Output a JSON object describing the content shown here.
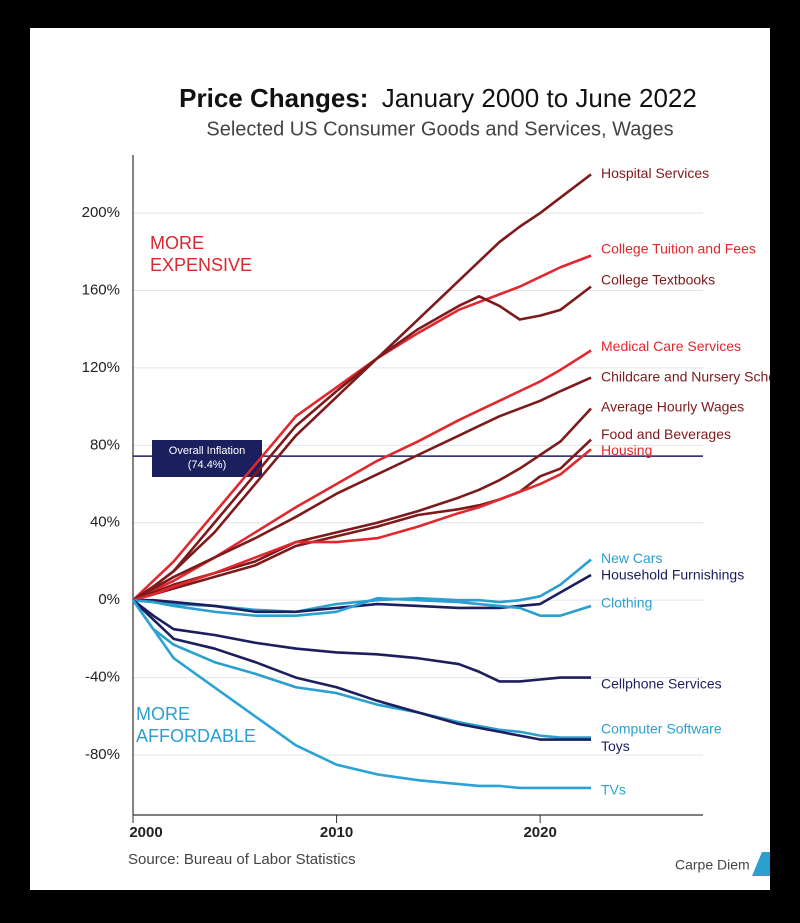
{
  "chart_data": {
    "type": "line",
    "title": [
      "Price Changes:",
      "January 2000 to June 2022"
    ],
    "subtitle": "Selected US Consumer Goods and Services, Wages",
    "source": "Source: Bureau of Labor Statistics",
    "credit": "Carpe Diem",
    "annotations": [
      {
        "lines": [
          "MORE",
          "EXPENSIVE"
        ],
        "color": "#d9272e"
      },
      {
        "lines": [
          "MORE",
          "AFFORDABLE"
        ],
        "color": "#2a9fd0"
      }
    ],
    "inflation": {
      "value": 74.4,
      "label": "Overall Inflation",
      "value_label": "(74.4%)",
      "color": "#1b1f5e"
    },
    "x": [
      2000,
      2001,
      2002,
      2004,
      2006,
      2008,
      2010,
      2012,
      2014,
      2016,
      2017,
      2018,
      2019,
      2020,
      2021,
      2022.5
    ],
    "xlim": [
      2000,
      2028
    ],
    "xticks": [
      2000,
      2010,
      2020
    ],
    "ylim": [
      -111,
      230
    ],
    "yticks": [
      {
        "value": -80,
        "label": "-80%"
      },
      {
        "value": -40,
        "label": "-40%"
      },
      {
        "value": 0,
        "label": "0%"
      },
      {
        "value": 40,
        "label": "40%"
      },
      {
        "value": 80,
        "label": "80%"
      },
      {
        "value": 120,
        "label": "120%"
      },
      {
        "value": 160,
        "label": "160%"
      },
      {
        "value": 200,
        "label": "200%"
      }
    ],
    "grid": true,
    "series": [
      {
        "name": "Hospital Services",
        "color": "#7d1a1c",
        "values": [
          0,
          7,
          15,
          35,
          60,
          85,
          105,
          125,
          145,
          165,
          175,
          185,
          193,
          200,
          208,
          220
        ]
      },
      {
        "name": "College Tuition and Fees",
        "color": "#e0282e",
        "values": [
          0,
          10,
          20,
          45,
          70,
          95,
          110,
          125,
          138,
          150,
          154,
          158,
          162,
          167,
          172,
          178
        ]
      },
      {
        "name": "College Textbooks",
        "color": "#7d1a1c",
        "values": [
          0,
          7,
          15,
          40,
          65,
          90,
          108,
          125,
          140,
          152,
          157,
          152,
          145,
          147,
          150,
          162
        ]
      },
      {
        "name": "Medical Care Services",
        "color": "#e0282e",
        "values": [
          0,
          5,
          10,
          22,
          35,
          48,
          60,
          72,
          82,
          93,
          98,
          103,
          108,
          113,
          119,
          129
        ]
      },
      {
        "name": "Childcare and Nursery School",
        "color": "#7d1a1c",
        "values": [
          0,
          6,
          12,
          22,
          32,
          43,
          55,
          65,
          75,
          85,
          90,
          95,
          99,
          103,
          108,
          115
        ]
      },
      {
        "name": "Average Hourly Wages",
        "color": "#7d1a1c",
        "values": [
          0,
          4,
          8,
          14,
          20,
          30,
          35,
          40,
          46,
          53,
          57,
          62,
          68,
          75,
          82,
          99
        ]
      },
      {
        "name": "Food and Beverages",
        "color": "#7d1a1c",
        "values": [
          0,
          3,
          6,
          12,
          18,
          28,
          33,
          38,
          44,
          47,
          49,
          52,
          56,
          64,
          68,
          83
        ]
      },
      {
        "name": "Housing",
        "color": "#e0282e",
        "values": [
          0,
          3,
          7,
          14,
          22,
          30,
          30,
          32,
          38,
          45,
          48,
          52,
          56,
          60,
          65,
          78
        ]
      },
      {
        "name": "New Cars",
        "color": "#2a9fd0",
        "values": [
          0,
          -1,
          -2,
          -3,
          -5,
          -6,
          -2,
          0,
          1,
          0,
          0,
          -1,
          0,
          2,
          8,
          21
        ]
      },
      {
        "name": "Household Furnishings",
        "color": "#1b1f5e",
        "values": [
          0,
          0,
          -1,
          -3,
          -6,
          -6,
          -4,
          -2,
          -3,
          -4,
          -4,
          -4,
          -3,
          -2,
          4,
          13
        ]
      },
      {
        "name": "Clothing",
        "color": "#2a9fd0",
        "values": [
          0,
          -1,
          -3,
          -6,
          -8,
          -8,
          -6,
          1,
          0,
          -1,
          -2,
          -3,
          -4,
          -8,
          -8,
          -3
        ]
      },
      {
        "name": "Cellphone Services",
        "color": "#1b1f5e",
        "values": [
          0,
          -8,
          -15,
          -18,
          -22,
          -25,
          -27,
          -28,
          -30,
          -33,
          -37,
          -42,
          -42,
          -41,
          -40,
          -40
        ]
      },
      {
        "name": "Computer Software",
        "color": "#2a9fd0",
        "values": [
          0,
          -15,
          -23,
          -32,
          -38,
          -45,
          -48,
          -54,
          -58,
          -63,
          -65,
          -67,
          -68,
          -70,
          -71,
          -71
        ]
      },
      {
        "name": "Toys",
        "color": "#1b1f5e",
        "values": [
          0,
          -10,
          -20,
          -25,
          -32,
          -40,
          -45,
          -52,
          -58,
          -64,
          -66,
          -68,
          -70,
          -72,
          -72,
          -72
        ]
      },
      {
        "name": "TVs",
        "color": "#2ba3d6",
        "values": [
          0,
          -15,
          -30,
          -45,
          -60,
          -75,
          -85,
          -90,
          -93,
          -95,
          -96,
          -96,
          -97,
          -97,
          -97,
          -97
        ]
      }
    ]
  }
}
